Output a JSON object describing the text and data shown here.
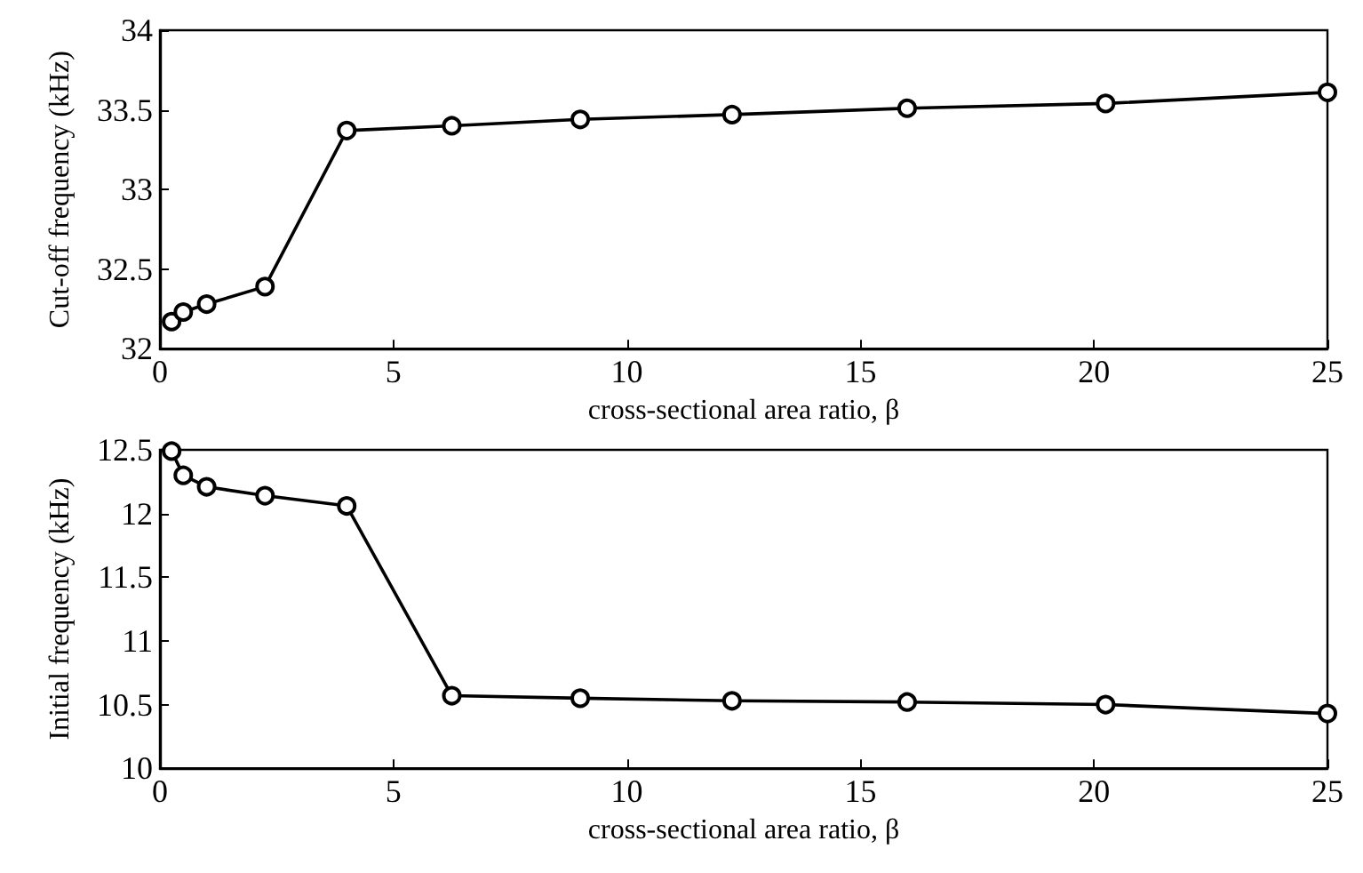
{
  "chart_data": [
    {
      "type": "line",
      "xlabel": "cross-sectional area ratio, β",
      "ylabel": "Cut-off frequency (kHz)",
      "x": [
        0.25,
        0.5,
        1,
        2.25,
        4,
        6.25,
        9,
        12.25,
        16,
        20.25,
        25
      ],
      "marker": "circle",
      "xlim": [
        0,
        25
      ],
      "xticks": [
        0,
        5,
        10,
        15,
        20,
        25
      ],
      "ylim": [
        32,
        34
      ],
      "yticks": [
        32,
        32.5,
        33,
        33.5,
        34
      ],
      "series": [
        {
          "color": "#000000",
          "values": [
            32.17,
            32.23,
            32.28,
            32.39,
            33.37,
            33.4,
            33.44,
            33.47,
            33.51,
            33.54,
            33.61
          ]
        }
      ]
    },
    {
      "type": "line",
      "xlabel": "cross-sectional area ratio, β",
      "ylabel": "Initial frequency (kHz)",
      "x": [
        0.25,
        0.5,
        1,
        2.25,
        4,
        6.25,
        9,
        12.25,
        16,
        20.25,
        25
      ],
      "marker": "circle",
      "xlim": [
        0,
        25
      ],
      "xticks": [
        0,
        5,
        10,
        15,
        20,
        25
      ],
      "ylim": [
        10,
        12.5
      ],
      "yticks": [
        10,
        10.5,
        11,
        11.5,
        12,
        12.5
      ],
      "series": [
        {
          "color": "#000000",
          "values": [
            12.49,
            12.3,
            12.21,
            12.14,
            12.06,
            10.57,
            10.55,
            10.53,
            10.52,
            10.5,
            10.43
          ]
        }
      ]
    }
  ]
}
